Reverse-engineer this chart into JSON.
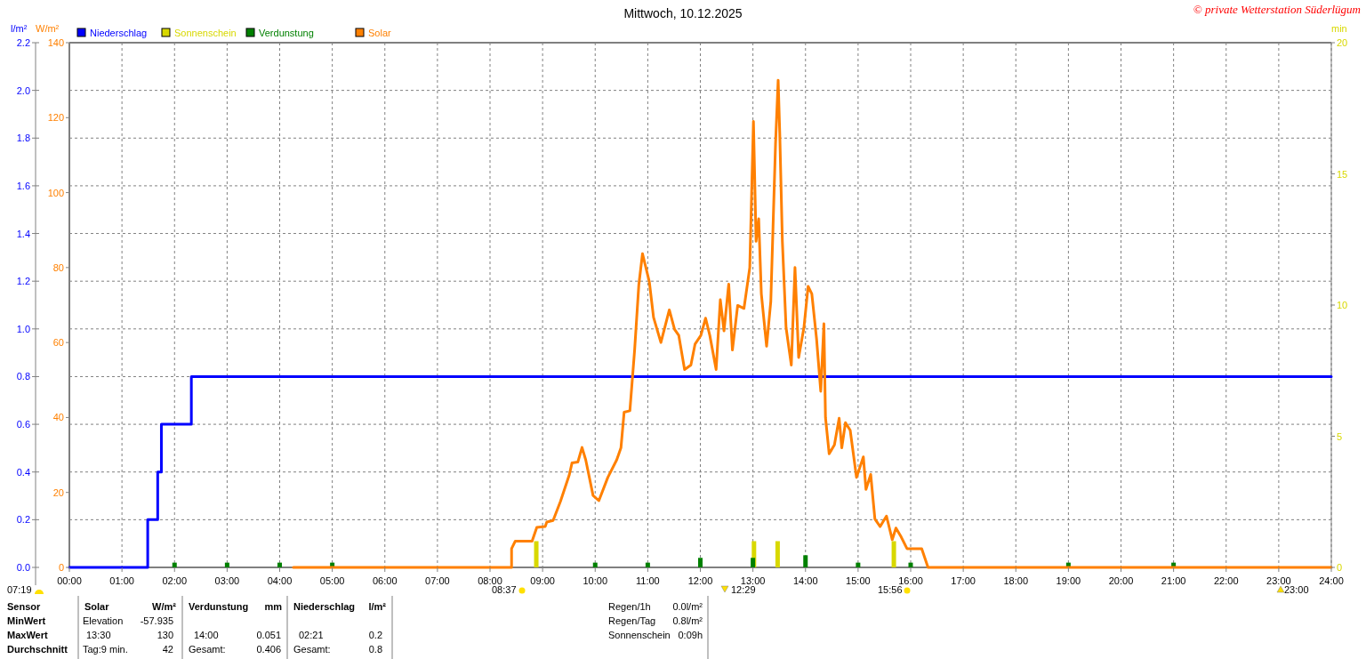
{
  "chart_data": {
    "type": "line",
    "title": "Mittwoch, 10.12.2025",
    "ylabel": "l/m²",
    "y2label": "W/m²",
    "y3label": "min",
    "xlim": [
      0,
      24
    ],
    "xticks": [
      {
        "value": 0,
        "label": "00:00"
      },
      {
        "value": 1,
        "label": "01:00"
      },
      {
        "value": 2,
        "label": "02:00"
      },
      {
        "value": 3,
        "label": "03:00"
      },
      {
        "value": 4,
        "label": "04:00"
      },
      {
        "value": 5,
        "label": "05:00"
      },
      {
        "value": 6,
        "label": "06:00"
      },
      {
        "value": 7,
        "label": "07:00"
      },
      {
        "value": 8,
        "label": "08:00"
      },
      {
        "value": 9,
        "label": "09:00"
      },
      {
        "value": 10,
        "label": "10:00"
      },
      {
        "value": 11,
        "label": "11:00"
      },
      {
        "value": 12,
        "label": "12:00"
      },
      {
        "value": 13,
        "label": "13:00"
      },
      {
        "value": 14,
        "label": "14:00"
      },
      {
        "value": 15,
        "label": "15:00"
      },
      {
        "value": 16,
        "label": "16:00"
      },
      {
        "value": 17,
        "label": "17:00"
      },
      {
        "value": 18,
        "label": "18:00"
      },
      {
        "value": 19,
        "label": "19:00"
      },
      {
        "value": 20,
        "label": "20:00"
      },
      {
        "value": 21,
        "label": "21:00"
      },
      {
        "value": 22,
        "label": "22:00"
      },
      {
        "value": 23,
        "label": "23:00"
      },
      {
        "value": 24,
        "label": "24:00"
      }
    ],
    "ylim": [
      0,
      2.2
    ],
    "yticks": [
      {
        "value": 0,
        "label": "0.0"
      },
      {
        "value": 0.2,
        "label": "0.2"
      },
      {
        "value": 0.4,
        "label": "0.4"
      },
      {
        "value": 0.6,
        "label": "0.6"
      },
      {
        "value": 0.8,
        "label": "0.8"
      },
      {
        "value": 1,
        "label": "1.0"
      },
      {
        "value": 1.2,
        "label": "1.2"
      },
      {
        "value": 1.4,
        "label": "1.4"
      },
      {
        "value": 1.6,
        "label": "1.6"
      },
      {
        "value": 1.8,
        "label": "1.8"
      },
      {
        "value": 2,
        "label": "2.0"
      },
      {
        "value": 2.2,
        "label": "2.2"
      }
    ],
    "y2lim": [
      0,
      140
    ],
    "y2ticks": [
      0,
      20,
      40,
      60,
      80,
      100,
      120,
      140
    ],
    "y3lim": [
      0,
      20
    ],
    "y3ticks": [
      0,
      5,
      10,
      15,
      20
    ],
    "grid": true,
    "legend": "top left",
    "series": [
      {
        "name": "Niederschlag",
        "type": "step",
        "axis": "y",
        "color": "#0000ff",
        "x": [
          0,
          1.49,
          1.68,
          1.75,
          2.32,
          24
        ],
        "values": [
          0,
          0.2,
          0.4,
          0.6,
          0.8,
          0.8
        ]
      },
      {
        "name": "Sonnenschein",
        "type": "bar",
        "axis": "y3",
        "color": "#d8d800",
        "x": [
          8.88,
          13.02,
          13.47,
          15.68
        ],
        "values": [
          1,
          1,
          1,
          1
        ]
      },
      {
        "name": "Verdunstung",
        "type": "bar",
        "axis": "y",
        "color": "#008000",
        "x": [
          2,
          3,
          4,
          5,
          10,
          11,
          12,
          13,
          14,
          15,
          16,
          19,
          21
        ],
        "values": [
          0.02,
          0.02,
          0.02,
          0.02,
          0.02,
          0.02,
          0.04,
          0.04,
          0.051,
          0.02,
          0.02,
          0.02,
          0.02
        ]
      },
      {
        "name": "Solar",
        "axis": "y2",
        "color": "#ff8000",
        "x": [
          4.26,
          8.41,
          8.41,
          8.48,
          8.8,
          8.89,
          9.05,
          9.08,
          9.2,
          9.34,
          9.51,
          9.56,
          9.67,
          9.75,
          9.82,
          9.96,
          10.07,
          10.24,
          10.41,
          10.49,
          10.55,
          10.66,
          10.75,
          10.83,
          10.9,
          11.03,
          11.11,
          11.25,
          11.41,
          11.51,
          11.59,
          11.7,
          11.82,
          11.9,
          12.01,
          12.1,
          12.18,
          12.3,
          12.38,
          12.45,
          12.54,
          12.61,
          12.71,
          12.83,
          12.94,
          13.01,
          13.06,
          13.11,
          13.16,
          13.26,
          13.34,
          13.43,
          13.48,
          13.51,
          13.56,
          13.63,
          13.73,
          13.8,
          13.87,
          13.97,
          14.05,
          14.12,
          14.21,
          14.29,
          14.35,
          14.38,
          14.45,
          14.55,
          14.64,
          14.69,
          14.76,
          14.85,
          14.97,
          15.1,
          15.15,
          15.24,
          15.32,
          15.42,
          15.54,
          15.65,
          15.72,
          15.82,
          15.93,
          16.21,
          16.33,
          24
        ],
        "values": [
          0,
          0,
          5,
          7,
          7,
          10.7,
          10.9,
          12.1,
          12.5,
          17.6,
          24.8,
          27.9,
          28.1,
          32,
          28.7,
          19.2,
          17.8,
          24,
          28.7,
          31.9,
          41.4,
          41.8,
          58,
          75.4,
          83.7,
          76.2,
          66.7,
          60,
          68.7,
          63.5,
          61.9,
          52.8,
          54,
          59.6,
          61.9,
          66.5,
          61.9,
          52.8,
          71.4,
          63.1,
          75.6,
          58,
          69.9,
          69.1,
          80,
          119,
          87,
          93,
          73,
          59,
          71,
          113,
          130,
          116,
          87,
          64,
          54,
          80,
          56,
          64,
          75,
          73,
          61,
          47,
          65,
          40,
          30.3,
          32.7,
          39.8,
          31.9,
          38.6,
          36.6,
          24,
          29.5,
          20.8,
          24.8,
          12.9,
          10.9,
          13.7,
          7.4,
          10.5,
          8.1,
          5,
          5,
          0,
          0
        ]
      }
    ],
    "annotations": [
      "© private Wetterstation Süderlügum",
      "07:19",
      "08:37",
      "12:29",
      "15:56",
      "23:00",
      "Sensor",
      "Solar",
      "W/m²",
      "Verdunstung",
      "mm",
      "Niederschlag",
      "l/m²",
      "MinWert",
      "Elevation",
      "-57.935",
      "MaxWert",
      "13:30",
      "130",
      "14:00",
      "0.051",
      "02:21",
      "0.2",
      "Durchschnitt",
      "Tag:9 min.",
      "42",
      "Gesamt:",
      "0.406",
      "Gesamt:",
      "0.8",
      "Regen/1h",
      "0.0l/m²",
      "Regen/Tag",
      "0.8l/m²",
      "Sonnenschein",
      "0:09h"
    ]
  }
}
